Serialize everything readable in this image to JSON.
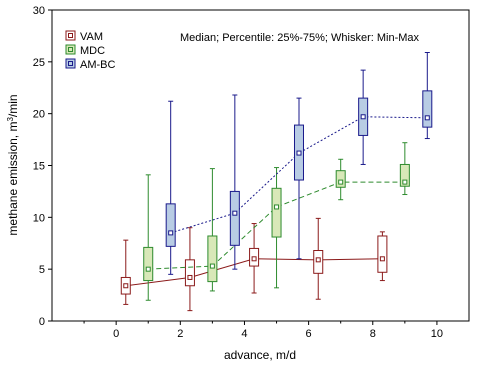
{
  "chart_data": {
    "type": "box",
    "annotation": "Median; Percentile: 25%-75%; Whisker: Min-Max",
    "xlabel": "advance, m/d",
    "ylabel_main": "methane emission, m",
    "ylabel_sup": "3",
    "ylabel_end": "/min",
    "xlim": [
      -2,
      11
    ],
    "ylim": [
      0,
      30
    ],
    "xticks": [
      "0",
      "2",
      "4",
      "6",
      "8",
      "10"
    ],
    "yticks": [
      "0",
      "5",
      "10",
      "15",
      "20",
      "25",
      "30"
    ],
    "legend_position": "top-left",
    "series": [
      {
        "name": "VAM",
        "color": "#8b1a1a",
        "fill": "#ffffff",
        "line": "solid",
        "boxes": [
          {
            "x": 0.3,
            "min": 1.6,
            "q1": 2.6,
            "median": 3.4,
            "q3": 4.2,
            "max": 7.8
          },
          {
            "x": 2.3,
            "min": 1.0,
            "q1": 3.4,
            "median": 4.2,
            "q3": 5.9,
            "max": 9.0
          },
          {
            "x": 4.3,
            "min": 2.7,
            "q1": 5.3,
            "median": 6.0,
            "q3": 7.0,
            "max": 9.4
          },
          {
            "x": 6.3,
            "min": 2.1,
            "q1": 4.6,
            "median": 5.9,
            "q3": 6.8,
            "max": 9.9
          },
          {
            "x": 8.3,
            "min": 3.9,
            "q1": 4.7,
            "median": 6.0,
            "q3": 8.2,
            "max": 8.6
          }
        ]
      },
      {
        "name": "MDC",
        "color": "#2e8b2e",
        "fill": "#d8e8b8",
        "line": "dashed",
        "boxes": [
          {
            "x": 1.0,
            "min": 2.0,
            "q1": 3.9,
            "median": 5.0,
            "q3": 7.1,
            "max": 14.1
          },
          {
            "x": 3.0,
            "min": 2.9,
            "q1": 3.8,
            "median": 5.3,
            "q3": 8.2,
            "max": 14.7
          },
          {
            "x": 5.0,
            "min": 3.2,
            "q1": 8.1,
            "median": 11.0,
            "q3": 12.8,
            "max": 14.8
          },
          {
            "x": 7.0,
            "min": 11.7,
            "q1": 12.9,
            "median": 13.4,
            "q3": 14.5,
            "max": 15.6
          },
          {
            "x": 9.0,
            "min": 12.2,
            "q1": 13.0,
            "median": 13.4,
            "q3": 15.1,
            "max": 17.2
          }
        ]
      },
      {
        "name": "AM-BC",
        "color": "#1a1a8b",
        "fill": "#b8cce4",
        "line": "dotted",
        "boxes": [
          {
            "x": 1.7,
            "min": 4.5,
            "q1": 7.2,
            "median": 8.5,
            "q3": 11.3,
            "max": 21.2
          },
          {
            "x": 3.7,
            "min": 5.0,
            "q1": 7.3,
            "median": 10.4,
            "q3": 12.5,
            "max": 21.8
          },
          {
            "x": 5.7,
            "min": 6.0,
            "q1": 13.6,
            "median": 16.2,
            "q3": 18.9,
            "max": 21.5
          },
          {
            "x": 7.7,
            "min": 15.1,
            "q1": 17.9,
            "median": 19.7,
            "q3": 21.5,
            "max": 24.2
          },
          {
            "x": 9.7,
            "min": 17.6,
            "q1": 18.7,
            "median": 19.6,
            "q3": 22.2,
            "max": 25.9
          }
        ]
      }
    ]
  }
}
